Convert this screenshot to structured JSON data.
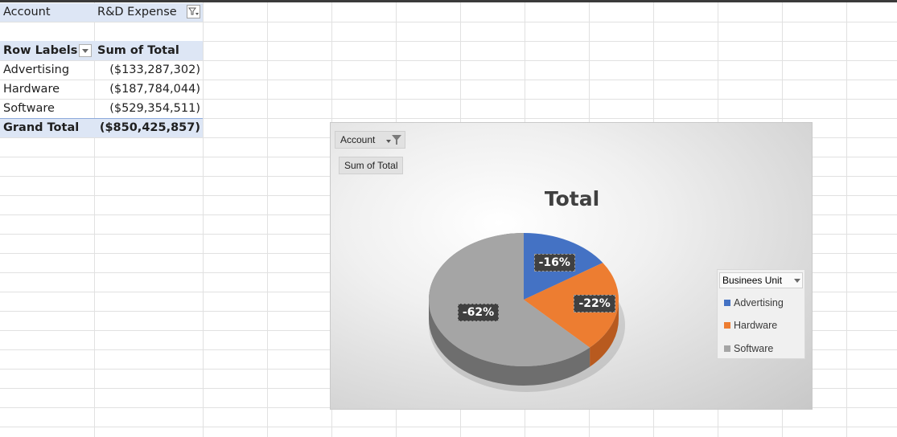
{
  "pivot": {
    "filter": {
      "field": "Account",
      "value": "R&D Expense"
    },
    "headers": {
      "row_labels": "Row Labels",
      "value_col": "Sum of Total"
    },
    "rows": [
      {
        "label": "Advertising",
        "value": "($133,287,302)"
      },
      {
        "label": "Hardware",
        "value": "($187,784,044)"
      },
      {
        "label": "Software",
        "value": "($529,354,511)"
      }
    ],
    "grand_total": {
      "label": "Grand Total",
      "value": "($850,425,857)"
    }
  },
  "chart": {
    "field_buttons": {
      "filter": "Account",
      "value": "Sum of Total"
    },
    "legend_title": "Businees Unit",
    "colors": {
      "advertising": "#4472c4",
      "hardware": "#ed7d31",
      "software": "#a5a5a5"
    },
    "icons": [
      "filter-icon",
      "chevron-down-icon"
    ]
  },
  "chart_data": {
    "type": "pie",
    "title": "Total",
    "categories": [
      "Advertising",
      "Hardware",
      "Software"
    ],
    "values": [
      -133287302,
      -187784044,
      -529354511
    ],
    "data_labels": [
      "-16%",
      "-22%",
      "-62%"
    ],
    "legend": "right"
  }
}
